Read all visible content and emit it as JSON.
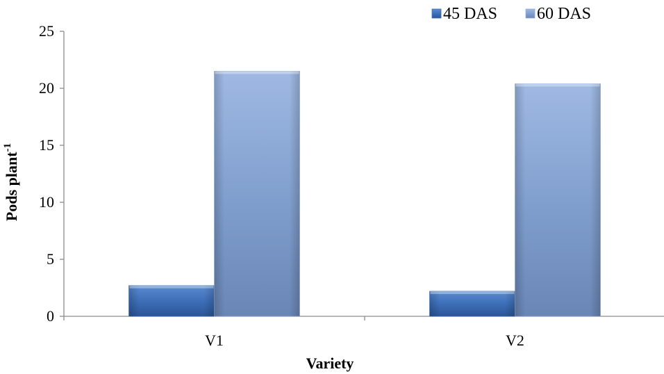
{
  "chart_data": {
    "type": "bar",
    "categories": [
      "V1",
      "V2"
    ],
    "series": [
      {
        "name": "45 DAS",
        "values": [
          2.7,
          2.2
        ],
        "color": "#3d6fb8"
      },
      {
        "name": "60 DAS",
        "values": [
          21.5,
          20.4
        ],
        "color": "#93add9"
      }
    ],
    "xlabel": "Variety",
    "ylabel": "Pods plant",
    "ylabel_superscript": "-1",
    "ylim": [
      0,
      25
    ],
    "yticks": [
      0,
      5,
      10,
      15,
      20,
      25
    ],
    "grid": false,
    "legend_position": "top-right",
    "bar_style": "3d-gradient"
  }
}
